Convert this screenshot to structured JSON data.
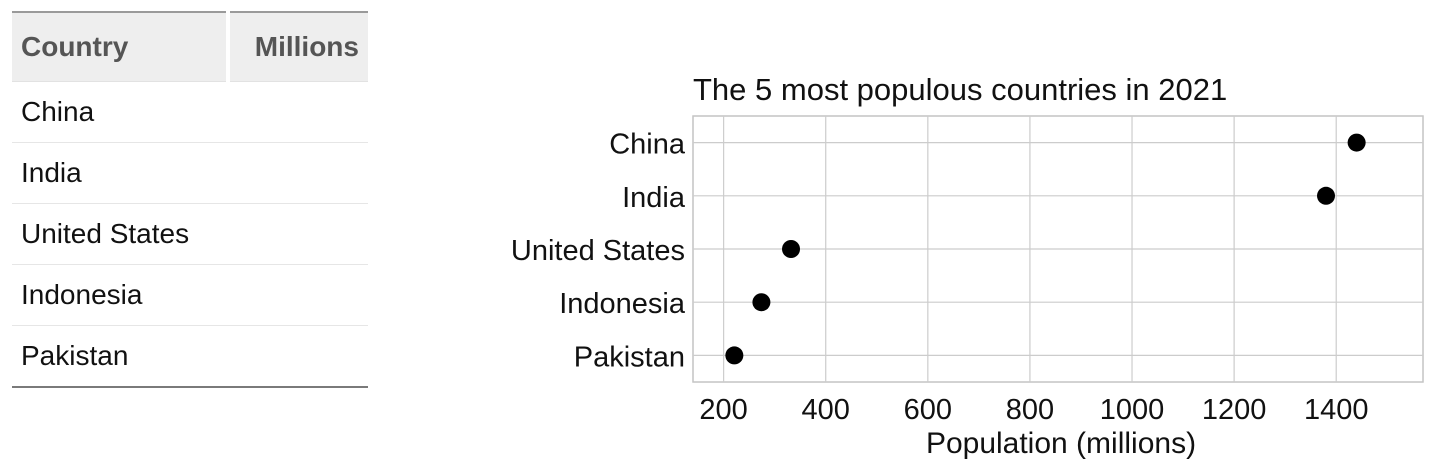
{
  "table": {
    "headers": {
      "country": "Country",
      "value": "Millions"
    },
    "rows": [
      {
        "country": "China",
        "value": ""
      },
      {
        "country": "India",
        "value": ""
      },
      {
        "country": "United States",
        "value": ""
      },
      {
        "country": "Indonesia",
        "value": ""
      },
      {
        "country": "Pakistan",
        "value": ""
      }
    ]
  },
  "chart_data": {
    "type": "scatter",
    "title": "The 5 most populous countries in 2021",
    "xlabel": "Population (millions)",
    "ylabel": "",
    "categories": [
      "China",
      "India",
      "United States",
      "Indonesia",
      "Pakistan"
    ],
    "values": [
      1440,
      1380,
      332,
      274,
      221
    ],
    "xlim": [
      140,
      1570
    ],
    "xticks": [
      200,
      400,
      600,
      800,
      1000,
      1200,
      1400
    ],
    "grid": true,
    "legend": "none",
    "point_color": "#000000",
    "grid_color": "#cccccc"
  }
}
